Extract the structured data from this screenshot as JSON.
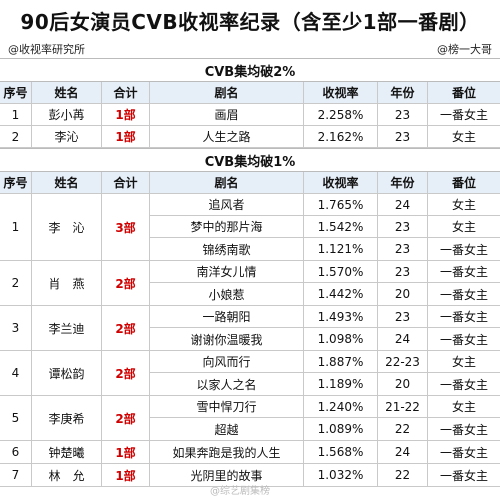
{
  "title": "90后女演员CVB收视率纪录（含至少1部一番剧）",
  "source_left": "@收视率研究所",
  "source_right": "@榜一大哥",
  "headers": [
    "序号",
    "姓名",
    "合计",
    "剧名",
    "收视率",
    "年份",
    "番位"
  ],
  "section1": {
    "title": "CVB集均破2%",
    "rows": [
      {
        "no": "1",
        "name": "彭小苒",
        "total": "1部",
        "show": "画眉",
        "rating": "2.258%",
        "year": "23",
        "rank": "一番女主"
      },
      {
        "no": "2",
        "name": "李沁",
        "total": "1部",
        "show": "人生之路",
        "rating": "2.162%",
        "year": "23",
        "rank": "女主"
      }
    ]
  },
  "section2": {
    "title": "CVB集均破1%",
    "groups": [
      {
        "no": "1",
        "name": "李　沁",
        "total": "3部",
        "shows": [
          {
            "show": "追风者",
            "rating": "1.765%",
            "year": "24",
            "rank": "女主"
          },
          {
            "show": "梦中的那片海",
            "rating": "1.542%",
            "year": "23",
            "rank": "女主"
          },
          {
            "show": "锦绣南歌",
            "rating": "1.121%",
            "year": "23",
            "rank": "一番女主"
          }
        ]
      },
      {
        "no": "2",
        "name": "肖　燕",
        "total": "2部",
        "shows": [
          {
            "show": "南洋女儿情",
            "rating": "1.570%",
            "year": "23",
            "rank": "一番女主"
          },
          {
            "show": "小娘惹",
            "rating": "1.442%",
            "year": "20",
            "rank": "一番女主"
          }
        ]
      },
      {
        "no": "3",
        "name": "李兰迪",
        "total": "2部",
        "shows": [
          {
            "show": "一路朝阳",
            "rating": "1.493%",
            "year": "23",
            "rank": "一番女主"
          },
          {
            "show": "谢谢你温暖我",
            "rating": "1.098%",
            "year": "24",
            "rank": "一番女主"
          }
        ]
      },
      {
        "no": "4",
        "name": "谭松韵",
        "total": "2部",
        "shows": [
          {
            "show": "向风而行",
            "rating": "1.887%",
            "year": "22-23",
            "rank": "女主"
          },
          {
            "show": "以家人之名",
            "rating": "1.189%",
            "year": "20",
            "rank": "一番女主"
          }
        ]
      },
      {
        "no": "5",
        "name": "李庚希",
        "total": "2部",
        "shows": [
          {
            "show": "雪中悍刀行",
            "rating": "1.240%",
            "year": "21-22",
            "rank": "女主"
          },
          {
            "show": "超越",
            "rating": "1.089%",
            "year": "22",
            "rank": "一番女主"
          }
        ]
      },
      {
        "no": "6",
        "name": "钟楚曦",
        "total": "1部",
        "shows": [
          {
            "show": "如果奔跑是我的人生",
            "rating": "1.568%",
            "year": "24",
            "rank": "一番女主"
          }
        ]
      },
      {
        "no": "7",
        "name": "林　允",
        "total": "1部",
        "shows": [
          {
            "show": "光阴里的故事",
            "rating": "1.032%",
            "year": "22",
            "rank": "一番女主"
          }
        ]
      }
    ]
  },
  "watermark": "@综艺剧集榜"
}
